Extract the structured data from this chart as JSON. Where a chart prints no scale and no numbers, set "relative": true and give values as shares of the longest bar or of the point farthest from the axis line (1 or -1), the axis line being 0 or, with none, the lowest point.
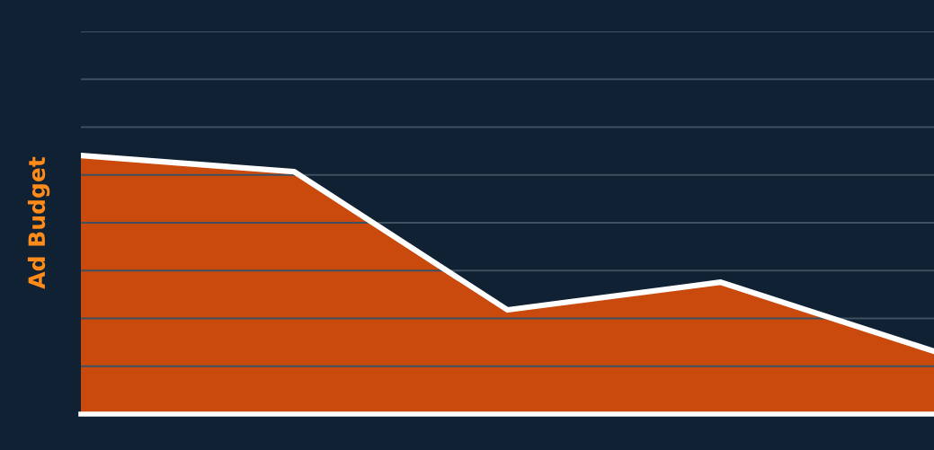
{
  "chart_data": {
    "type": "area",
    "relative": true,
    "ylabel": "Ad Budget",
    "categories": [
      null,
      null,
      null,
      null,
      null
    ],
    "series": [
      {
        "color": "#c94a0c",
        "values": [
          1,
          0.9375,
          0.403,
          0.51,
          0.243
        ]
      }
    ],
    "grid": "y",
    "marker": "none",
    "line_style": "solid"
  }
}
